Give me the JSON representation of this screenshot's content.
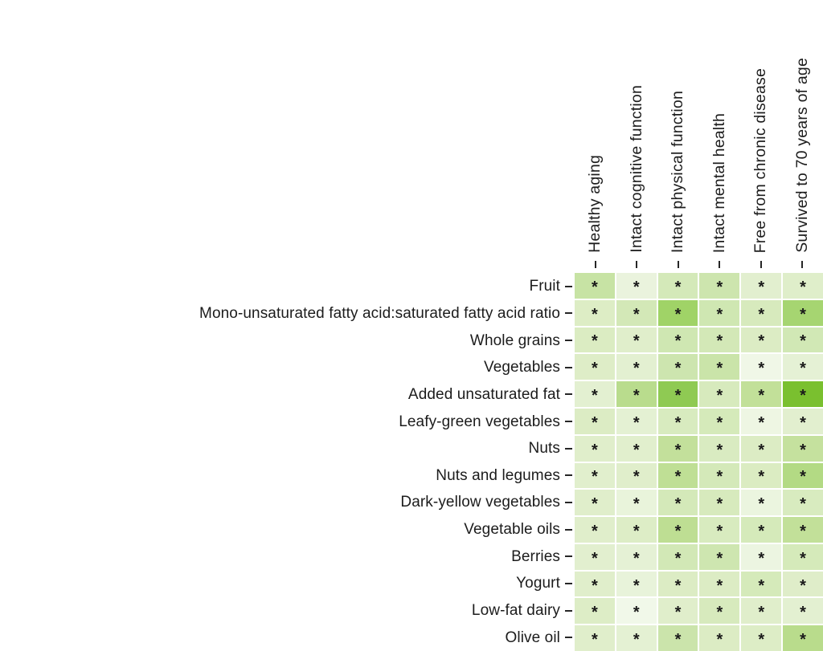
{
  "figure": {
    "background": "#ffffff"
  },
  "chart_data": {
    "type": "heatmap",
    "title": "",
    "xlabel": "",
    "ylabel": "",
    "legend": "none",
    "grid": "off",
    "layout": {
      "column_label_rotation_deg": 90,
      "row_labels_side": "left",
      "cell_gap_color": "#ffffff"
    },
    "columns": [
      "Healthy aging",
      "Intact cognitive function",
      "Intact physical function",
      "Intact mental health",
      "Free from chronic disease",
      "Survived to 70 years of age"
    ],
    "rows": [
      "Fruit",
      "Mono-unsaturated fatty acid:saturated fatty acid ratio",
      "Whole grains",
      "Vegetables",
      "Added unsaturated fat",
      "Leafy-green vegetables",
      "Nuts",
      "Nuts and legumes",
      "Dark-yellow vegetables",
      "Vegetable oils",
      "Berries",
      "Yogurt",
      "Low-fat dairy",
      "Olive oil"
    ],
    "significance_marker": "*",
    "all_cells_marked": true,
    "cell_colors": [
      [
        "#c7e3a4",
        "#eaf3dd",
        "#d4e9b9",
        "#cde5ae",
        "#e2efcf",
        "#dfeeca"
      ],
      [
        "#ddedc5",
        "#d3e8b7",
        "#a0d367",
        "#cfe7b2",
        "#d7eabd",
        "#a6d571"
      ],
      [
        "#dbecc2",
        "#e0eecb",
        "#cfe7b2",
        "#d3e8b7",
        "#dcecc4",
        "#d1e8b5"
      ],
      [
        "#deedc7",
        "#e3f0d1",
        "#cde5af",
        "#cae4a9",
        "#f0f7e7",
        "#e5f1d5"
      ],
      [
        "#e3f0d1",
        "#b9dc8d",
        "#8fca53",
        "#d7eabd",
        "#c2e099",
        "#7ac02f"
      ],
      [
        "#dcecc4",
        "#e4f1d3",
        "#d8ebbf",
        "#d5eaba",
        "#eef6e3",
        "#e2efcf"
      ],
      [
        "#e0eecb",
        "#e1efcd",
        "#c3e09b",
        "#d9ebc1",
        "#dcecc4",
        "#c5e19e"
      ],
      [
        "#e1efcd",
        "#e0eecb",
        "#bfdf95",
        "#d4e9b9",
        "#dbecc2",
        "#b3da84"
      ],
      [
        "#e0eecb",
        "#e9f4db",
        "#d4e9b9",
        "#d7eabd",
        "#ebf5df",
        "#d8ebbf"
      ],
      [
        "#e0eecb",
        "#ddedc6",
        "#bede93",
        "#d8ebbf",
        "#d5eaba",
        "#c2e099"
      ],
      [
        "#e2efcf",
        "#e5f1d5",
        "#d2e8b6",
        "#cee6b0",
        "#ecf5e1",
        "#d5eaba"
      ],
      [
        "#e0eecb",
        "#e8f3da",
        "#dcecc4",
        "#dcecc4",
        "#d5eaba",
        "#dfedc9"
      ],
      [
        "#ddedc6",
        "#f1f8e9",
        "#e0eecb",
        "#d7eabd",
        "#e0eecb",
        "#e3f0d1"
      ],
      [
        "#e0eecb",
        "#e4f1d3",
        "#cbe4ab",
        "#dcecc4",
        "#ddedc6",
        "#b9dc8c"
      ]
    ],
    "colors": {
      "label_text": "#1c1c1c",
      "tick": "#262626",
      "cell_marker": "#1a1a1a"
    }
  }
}
